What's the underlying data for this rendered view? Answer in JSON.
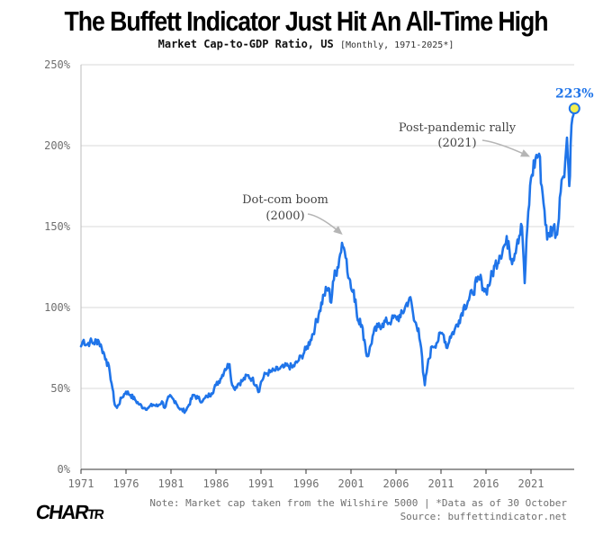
{
  "title": "The Buffett Indicator Just Hit An All-Time High",
  "subtitle": "Market Cap-to-GDP Ratio, US",
  "subtitle_note": "[Monthly, 1971-2025*]",
  "footer": {
    "note": "Note: Market cap taken from the Wilshire 5000 | *Data as of 30 October",
    "source": "Source: buffettindicator.net"
  },
  "logo": {
    "main": "CHAR",
    "small": "TR"
  },
  "colors": {
    "line": "#1f74e9",
    "grid": "#d9d9d9",
    "axis": "#6f6f6f",
    "highlight": "#f3ef4f",
    "annotation_text": "#444444",
    "arrow": "#b5b5b5"
  },
  "chart_data": {
    "type": "line",
    "title": "Market Cap-to-GDP Ratio, US",
    "xlabel": "",
    "ylabel": "",
    "xlim": [
      1971,
      2025.8
    ],
    "ylim": [
      0,
      250
    ],
    "x_ticks": [
      1971,
      1976,
      1981,
      1986,
      1991,
      1996,
      2001,
      2006,
      2011,
      2016,
      2021
    ],
    "x_tick_labels": [
      "1971",
      "1976",
      "1981",
      "1986",
      "1991",
      "1996",
      "2001",
      "2006",
      "2011",
      "2016",
      "2021"
    ],
    "y_ticks": [
      0,
      50,
      100,
      150,
      200,
      250
    ],
    "y_tick_labels": [
      "0%",
      "50%",
      "100%",
      "150%",
      "200%",
      "250%"
    ],
    "grid": "horizontal",
    "series": [
      {
        "name": "Market Cap-to-GDP Ratio",
        "x": [
          1971.0,
          1971.3,
          1971.6,
          1972.0,
          1972.4,
          1972.9,
          1973.3,
          1973.8,
          1974.2,
          1974.5,
          1974.75,
          1975.0,
          1975.5,
          1976.0,
          1976.5,
          1977.0,
          1977.5,
          1978.0,
          1978.5,
          1979.0,
          1979.5,
          1980.0,
          1980.3,
          1980.8,
          1981.5,
          1982.0,
          1982.6,
          1983.0,
          1983.5,
          1984.0,
          1984.5,
          1985.0,
          1985.5,
          1986.0,
          1986.5,
          1987.0,
          1987.5,
          1987.8,
          1988.0,
          1988.5,
          1989.0,
          1989.5,
          1990.0,
          1990.5,
          1990.8,
          1991.0,
          1991.5,
          1992.0,
          1992.5,
          1993.0,
          1993.5,
          1994.0,
          1994.5,
          1995.0,
          1995.5,
          1996.0,
          1996.5,
          1997.0,
          1997.5,
          1998.0,
          1998.5,
          1998.8,
          1999.0,
          1999.5,
          1999.8,
          2000.0,
          2000.2,
          2000.5,
          2000.8,
          2001.0,
          2001.5,
          2001.75,
          2002.0,
          2002.5,
          2002.75,
          2003.0,
          2003.5,
          2004.0,
          2004.5,
          2005.0,
          2005.5,
          2006.0,
          2006.5,
          2007.0,
          2007.5,
          2007.8,
          2008.0,
          2008.5,
          2008.8,
          2009.0,
          2009.2,
          2009.5,
          2010.0,
          2010.5,
          2011.0,
          2011.3,
          2011.7,
          2012.0,
          2012.5,
          2013.0,
          2013.5,
          2014.0,
          2014.5,
          2015.0,
          2015.5,
          2015.7,
          2016.0,
          2016.5,
          2017.0,
          2017.5,
          2018.0,
          2018.5,
          2018.8,
          2019.0,
          2019.5,
          2020.0,
          2020.2,
          2020.3,
          2020.6,
          2021.0,
          2021.5,
          2021.9,
          2022.2,
          2022.5,
          2022.8,
          2023.0,
          2023.5,
          2023.9,
          2024.2,
          2024.5,
          2024.8,
          2025.0,
          2025.25,
          2025.4,
          2025.6,
          2025.83
        ],
        "values": [
          76,
          80,
          77,
          79,
          78,
          80,
          75,
          68,
          60,
          50,
          40,
          38,
          44,
          48,
          46,
          43,
          40,
          38,
          38,
          40,
          39,
          42,
          38,
          45,
          42,
          37,
          36,
          40,
          46,
          44,
          42,
          45,
          47,
          52,
          56,
          62,
          65,
          52,
          50,
          53,
          55,
          58,
          56,
          52,
          48,
          54,
          59,
          60,
          61,
          62,
          63,
          64,
          63,
          66,
          70,
          74,
          80,
          88,
          98,
          108,
          112,
          103,
          116,
          125,
          133,
          140,
          137,
          130,
          118,
          112,
          105,
          92,
          93,
          80,
          70,
          72,
          84,
          88,
          90,
          91,
          92,
          94,
          94,
          100,
          106,
          100,
          92,
          87,
          75,
          60,
          52,
          64,
          76,
          78,
          84,
          83,
          75,
          82,
          86,
          92,
          100,
          104,
          109,
          116,
          117,
          112,
          110,
          117,
          126,
          132,
          138,
          141,
          130,
          130,
          142,
          150,
          128,
          115,
          150,
          180,
          192,
          195,
          175,
          160,
          142,
          146,
          150,
          145,
          168,
          180,
          190,
          205,
          175,
          200,
          217,
          223
        ]
      }
    ],
    "annotations": [
      {
        "text_line1": "Dot-com boom",
        "text_line2": "(2000)",
        "x": 2000,
        "y": 143
      },
      {
        "text_line1": "Post-pandemic rally",
        "text_line2": "(2021)",
        "x": 2021,
        "y": 197
      },
      {
        "text": "223%",
        "x": 2025.83,
        "y": 223
      }
    ]
  }
}
